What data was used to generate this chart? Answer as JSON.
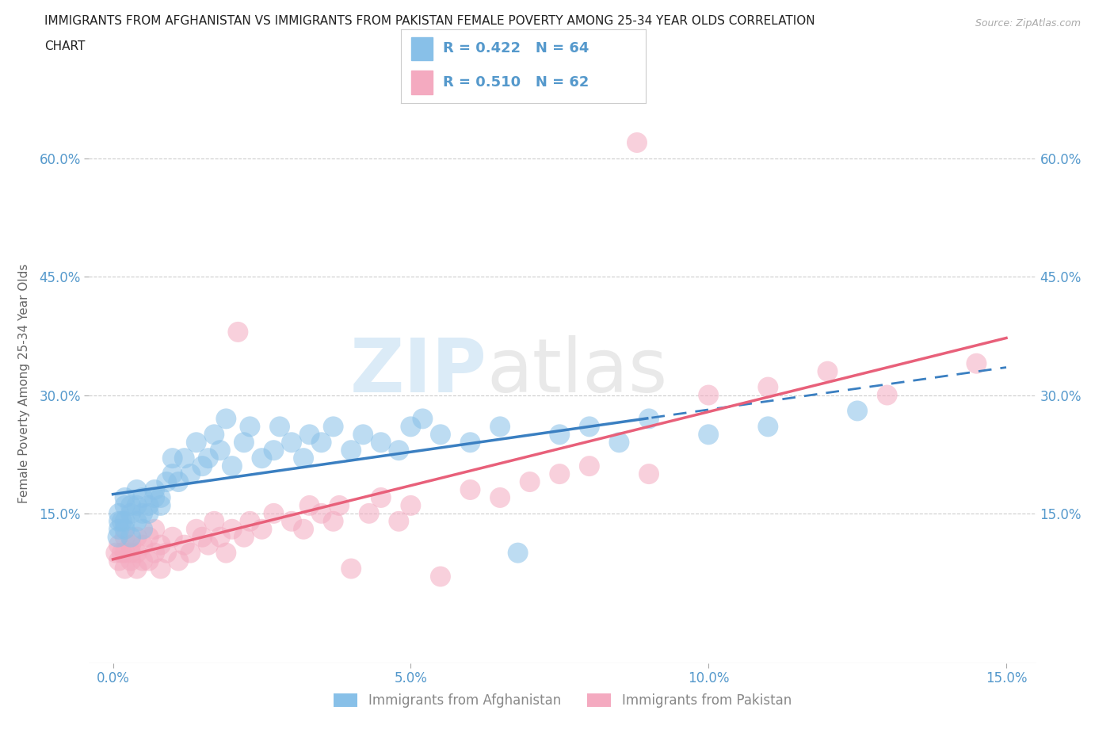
{
  "title_line1": "IMMIGRANTS FROM AFGHANISTAN VS IMMIGRANTS FROM PAKISTAN FEMALE POVERTY AMONG 25-34 YEAR OLDS CORRELATION",
  "title_line2": "CHART",
  "source_text": "Source: ZipAtlas.com",
  "ylabel": "Female Poverty Among 25-34 Year Olds",
  "xlabel": "",
  "xlim": [
    -0.004,
    0.155
  ],
  "ylim": [
    -0.04,
    0.67
  ],
  "x_ticks": [
    0.0,
    0.05,
    0.1,
    0.15
  ],
  "x_tick_labels": [
    "0.0%",
    "5.0%",
    "10.0%",
    "15.0%"
  ],
  "y_ticks": [
    0.15,
    0.3,
    0.45,
    0.6
  ],
  "y_tick_labels": [
    "15.0%",
    "30.0%",
    "45.0%",
    "60.0%"
  ],
  "legend_labels": [
    "Immigrants from Afghanistan",
    "Immigrants from Pakistan"
  ],
  "color_afghanistan": "#88c0e8",
  "color_pakistan": "#f4aac0",
  "line_color_afghanistan": "#3a7fc1",
  "line_color_pakistan": "#e8607a",
  "watermark_zip": "ZIP",
  "watermark_atlas": "atlas",
  "afghanistan_x": [
    0.0008,
    0.001,
    0.001,
    0.001,
    0.0015,
    0.002,
    0.002,
    0.002,
    0.002,
    0.003,
    0.003,
    0.003,
    0.004,
    0.004,
    0.004,
    0.005,
    0.005,
    0.005,
    0.006,
    0.006,
    0.007,
    0.007,
    0.008,
    0.008,
    0.009,
    0.01,
    0.01,
    0.011,
    0.012,
    0.013,
    0.014,
    0.015,
    0.016,
    0.017,
    0.018,
    0.019,
    0.02,
    0.022,
    0.023,
    0.025,
    0.027,
    0.028,
    0.03,
    0.032,
    0.033,
    0.035,
    0.037,
    0.04,
    0.042,
    0.045,
    0.048,
    0.05,
    0.052,
    0.055,
    0.06,
    0.065,
    0.068,
    0.075,
    0.08,
    0.085,
    0.09,
    0.1,
    0.11,
    0.125
  ],
  "afghanistan_y": [
    0.12,
    0.13,
    0.14,
    0.15,
    0.14,
    0.13,
    0.14,
    0.16,
    0.17,
    0.12,
    0.15,
    0.16,
    0.14,
    0.16,
    0.18,
    0.13,
    0.15,
    0.17,
    0.15,
    0.16,
    0.17,
    0.18,
    0.16,
    0.17,
    0.19,
    0.2,
    0.22,
    0.19,
    0.22,
    0.2,
    0.24,
    0.21,
    0.22,
    0.25,
    0.23,
    0.27,
    0.21,
    0.24,
    0.26,
    0.22,
    0.23,
    0.26,
    0.24,
    0.22,
    0.25,
    0.24,
    0.26,
    0.23,
    0.25,
    0.24,
    0.23,
    0.26,
    0.27,
    0.25,
    0.24,
    0.26,
    0.1,
    0.25,
    0.26,
    0.24,
    0.27,
    0.25,
    0.26,
    0.28
  ],
  "pakistan_x": [
    0.0005,
    0.001,
    0.001,
    0.0015,
    0.002,
    0.002,
    0.002,
    0.003,
    0.003,
    0.003,
    0.004,
    0.004,
    0.004,
    0.005,
    0.005,
    0.006,
    0.006,
    0.007,
    0.007,
    0.008,
    0.008,
    0.009,
    0.01,
    0.011,
    0.012,
    0.013,
    0.014,
    0.015,
    0.016,
    0.017,
    0.018,
    0.019,
    0.02,
    0.021,
    0.022,
    0.023,
    0.025,
    0.027,
    0.03,
    0.032,
    0.033,
    0.035,
    0.037,
    0.038,
    0.04,
    0.043,
    0.045,
    0.048,
    0.05,
    0.055,
    0.06,
    0.065,
    0.07,
    0.075,
    0.08,
    0.088,
    0.09,
    0.1,
    0.11,
    0.12,
    0.13,
    0.145
  ],
  "pakistan_y": [
    0.1,
    0.09,
    0.11,
    0.1,
    0.1,
    0.08,
    0.12,
    0.09,
    0.11,
    0.1,
    0.08,
    0.1,
    0.12,
    0.09,
    0.11,
    0.09,
    0.12,
    0.1,
    0.13,
    0.08,
    0.11,
    0.1,
    0.12,
    0.09,
    0.11,
    0.1,
    0.13,
    0.12,
    0.11,
    0.14,
    0.12,
    0.1,
    0.13,
    0.38,
    0.12,
    0.14,
    0.13,
    0.15,
    0.14,
    0.13,
    0.16,
    0.15,
    0.14,
    0.16,
    0.08,
    0.15,
    0.17,
    0.14,
    0.16,
    0.07,
    0.18,
    0.17,
    0.19,
    0.2,
    0.21,
    0.62,
    0.2,
    0.3,
    0.31,
    0.33,
    0.3,
    0.34
  ]
}
